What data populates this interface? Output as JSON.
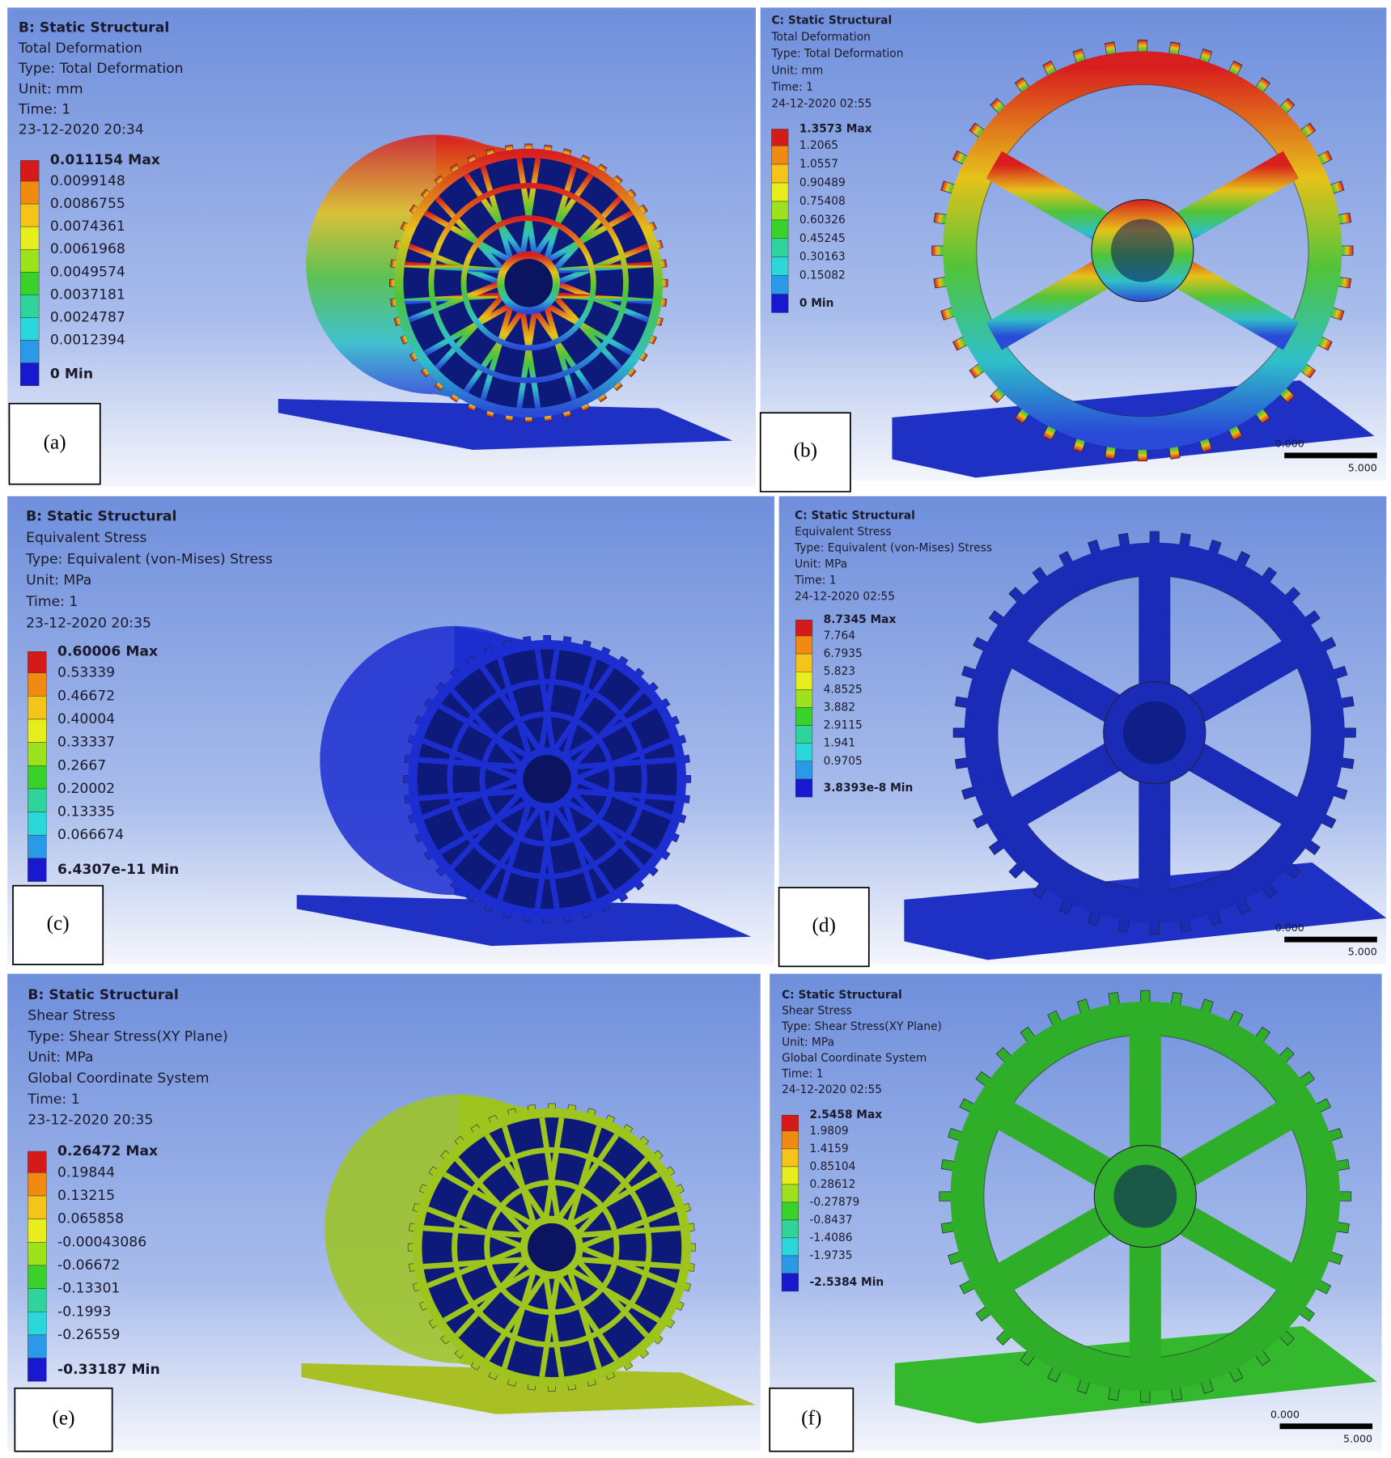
{
  "panels": [
    {
      "label": "(a)",
      "header": [
        "B: Static Structural",
        "Total Deformation",
        "Type: Total Deformation",
        "Unit: mm",
        "Time: 1",
        "23-12-2020 20:34"
      ],
      "legend": [
        "0.011154 Max",
        "0.0099148",
        "0.0086755",
        "0.0074361",
        "0.0061968",
        "0.0049574",
        "0.0037181",
        "0.0024787",
        "0.0012394",
        "0 Min"
      ]
    },
    {
      "label": "(b)",
      "header": [
        "C: Static Structural",
        "Total Deformation",
        "Type: Total Deformation",
        "Unit: mm",
        "Time: 1",
        "24-12-2020 02:55"
      ],
      "legend": [
        "1.3573 Max",
        "1.2065",
        "1.0557",
        "0.90489",
        "0.75408",
        "0.60326",
        "0.45245",
        "0.30163",
        "0.15082",
        "0 Min"
      ],
      "scale": [
        "0.000",
        "5.000"
      ]
    },
    {
      "label": "(c)",
      "header": [
        "B: Static Structural",
        "Equivalent Stress",
        "Type: Equivalent (von-Mises) Stress",
        "Unit: MPa",
        "Time: 1",
        "23-12-2020 20:35"
      ],
      "legend": [
        "0.60006 Max",
        "0.53339",
        "0.46672",
        "0.40004",
        "0.33337",
        "0.2667",
        "0.20002",
        "0.13335",
        "0.066674",
        "6.4307e-11 Min"
      ]
    },
    {
      "label": "(d)",
      "header": [
        "C: Static Structural",
        "Equivalent Stress",
        "Type: Equivalent (von-Mises) Stress",
        "Unit: MPa",
        "Time: 1",
        "24-12-2020 02:55"
      ],
      "legend": [
        "8.7345 Max",
        "7.764",
        "6.7935",
        "5.823",
        "4.8525",
        "3.882",
        "2.9115",
        "1.941",
        "0.9705",
        "3.8393e-8 Min"
      ],
      "scale": [
        "0.000",
        "5.000"
      ]
    },
    {
      "label": "(e)",
      "header": [
        "B: Static Structural",
        "Shear Stress",
        "Type: Shear Stress(XY Plane)",
        "Unit: MPa",
        "Global Coordinate System",
        "Time: 1",
        "23-12-2020 20:35"
      ],
      "legend": [
        "0.26472 Max",
        "0.19844",
        "0.13215",
        "0.065858",
        "-0.00043086",
        "-0.06672",
        "-0.13301",
        "-0.1993",
        "-0.26559",
        "-0.33187 Min"
      ]
    },
    {
      "label": "(f)",
      "header": [
        "C: Static Structural",
        "Shear Stress",
        "Type: Shear Stress(XY Plane)",
        "Unit: MPa",
        "Global Coordinate System",
        "Time: 1",
        "24-12-2020 02:55"
      ],
      "legend": [
        "2.5458 Max",
        "1.9809",
        "1.4159",
        "0.85104",
        "0.28612",
        "-0.27879",
        "-0.8437",
        "-1.4086",
        "-1.9735",
        "-2.5384 Min"
      ],
      "scale": [
        "0.000",
        "5.000"
      ]
    }
  ]
}
